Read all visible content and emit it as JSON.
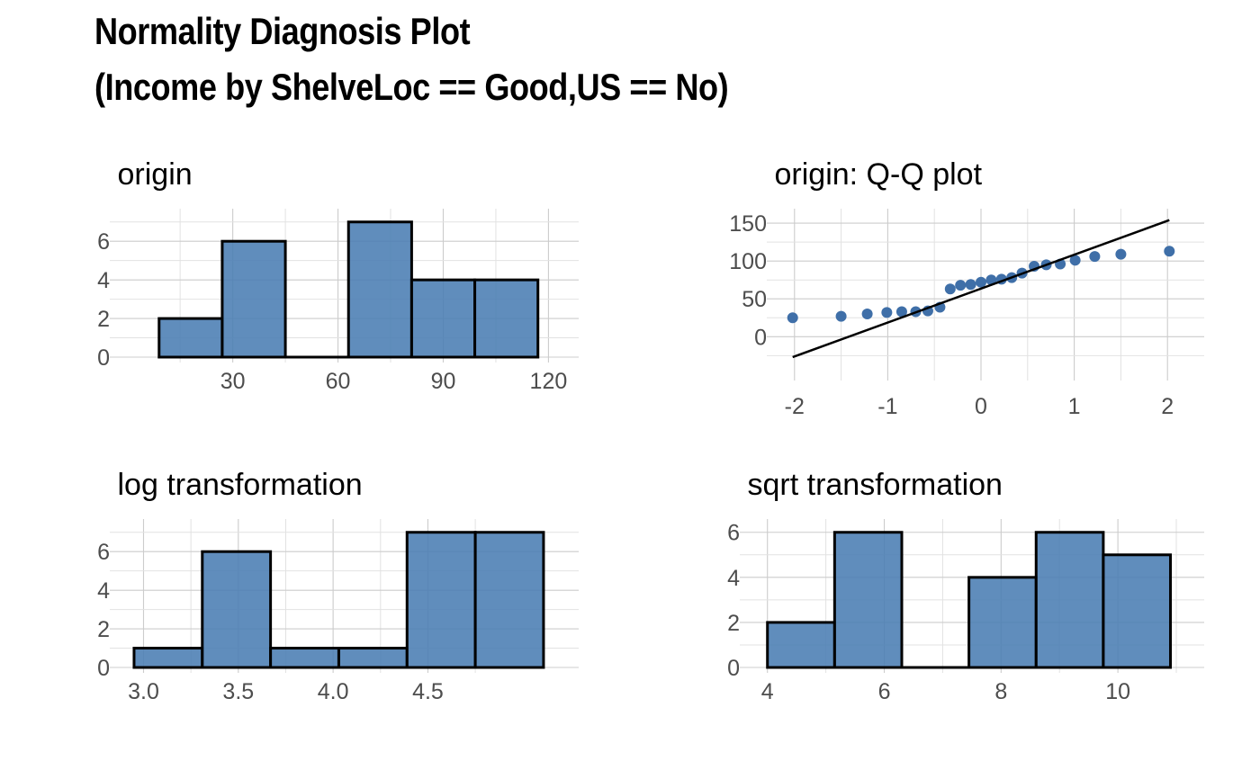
{
  "title": {
    "line1": "Normality Diagnosis Plot",
    "line2": "(Income by ShelveLoc == Good,US == No)"
  },
  "colors": {
    "fill": "#4A7DB3",
    "point": "#3F6FA8",
    "line": "#000000",
    "grid": "#CCCCCC"
  },
  "chart_data": [
    {
      "type": "bar",
      "title": "origin",
      "bin_edges": [
        9,
        27,
        45,
        63,
        81,
        99,
        117
      ],
      "values": [
        2,
        6,
        0,
        7,
        4,
        4
      ],
      "xlim": [
        -3,
        124
      ],
      "ylim": [
        0,
        7
      ],
      "xticks": [
        30,
        60,
        90,
        120
      ],
      "xtick_labels": [
        "30",
        "60",
        "90",
        "120"
      ],
      "yticks": [
        0,
        2,
        4,
        6
      ],
      "ytick_labels": [
        "0",
        "2",
        "4",
        "6"
      ],
      "grid": true
    },
    {
      "type": "scatter",
      "title": "origin: Q-Q plot",
      "x": [
        -2.02,
        -1.5,
        -1.22,
        -1.01,
        -0.85,
        -0.7,
        -0.57,
        -0.44,
        -0.33,
        -0.22,
        -0.11,
        0.0,
        0.11,
        0.22,
        0.33,
        0.44,
        0.57,
        0.7,
        0.85,
        1.01,
        1.22,
        1.5,
        2.02
      ],
      "y": [
        25,
        27,
        30,
        32,
        33,
        33,
        34,
        39,
        63,
        68,
        69,
        72,
        75,
        76,
        78,
        84,
        93,
        95,
        96,
        101,
        106,
        109,
        113
      ],
      "reference_line": {
        "x": [
          -2.02,
          2.02
        ],
        "y": [
          -27,
          154
        ]
      },
      "xlim": [
        -2.22,
        2.22
      ],
      "ylim": [
        -27,
        162
      ],
      "xticks": [
        -2,
        -1,
        0,
        1,
        2
      ],
      "xtick_labels": [
        "-2",
        "-1",
        "0",
        "1",
        "2"
      ],
      "yticks": [
        0,
        50,
        100,
        150
      ],
      "ytick_labels": [
        "0",
        "50",
        "100",
        "150"
      ],
      "grid": true
    },
    {
      "type": "bar",
      "title": "log transformation",
      "bin_edges": [
        2.95,
        3.31,
        3.67,
        4.03,
        4.39,
        4.75,
        5.11
      ],
      "values": [
        1,
        6,
        1,
        1,
        7,
        7
      ],
      "xlim": [
        2.86,
        5.21
      ],
      "ylim": [
        0,
        7
      ],
      "xticks": [
        3.0,
        3.5,
        4.0,
        4.5
      ],
      "xtick_labels": [
        "3.0",
        "3.5",
        "4.0",
        "4.5"
      ],
      "yticks": [
        0,
        2,
        4,
        6
      ],
      "ytick_labels": [
        "0",
        "2",
        "4",
        "6"
      ],
      "grid": true
    },
    {
      "type": "bar",
      "title": "sqrt transformation",
      "bin_edges": [
        4.0,
        5.15,
        6.3,
        7.45,
        8.6,
        9.75,
        10.9
      ],
      "values": [
        2,
        6,
        0,
        4,
        6,
        5
      ],
      "xlim": [
        3.65,
        11.2
      ],
      "ylim": [
        0,
        6
      ],
      "xticks": [
        4,
        6,
        8,
        10
      ],
      "xtick_labels": [
        "4",
        "6",
        "8",
        "10"
      ],
      "yticks": [
        0,
        2,
        4,
        6
      ],
      "ytick_labels": [
        "0",
        "2",
        "4",
        "6"
      ],
      "grid": true
    }
  ]
}
